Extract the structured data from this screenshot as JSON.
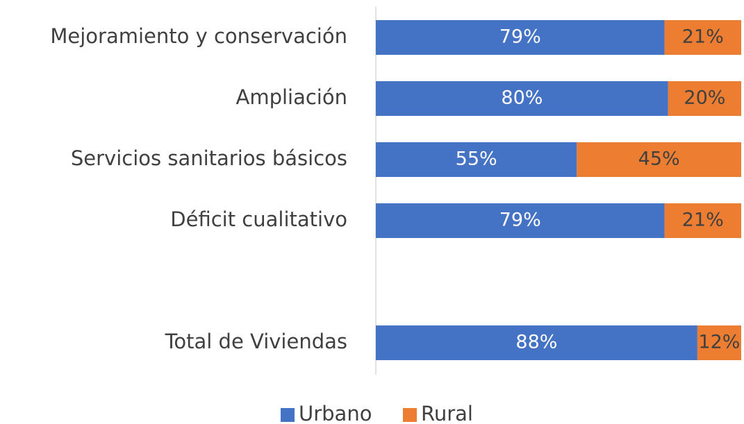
{
  "chart_data": {
    "type": "stacked_bar_horizontal",
    "categories": [
      "Mejoramiento y conservación",
      "Ampliación",
      "Servicios sanitarios básicos",
      "Déficit cualitativo",
      null,
      "Total de Viviendas"
    ],
    "series": [
      {
        "name": "Urbano",
        "color": "#4472c4",
        "values": [
          79,
          80,
          55,
          79,
          null,
          88
        ],
        "value_labels": [
          "79%",
          "80%",
          "55%",
          "79%",
          null,
          "88%"
        ]
      },
      {
        "name": "Rural",
        "color": "#ed7d31",
        "values": [
          21,
          20,
          45,
          21,
          null,
          12
        ],
        "value_labels": [
          "21%",
          "20%",
          "45%",
          "21%",
          null,
          "12%"
        ]
      }
    ],
    "xlim": [
      0,
      100
    ],
    "legend": "bottom"
  }
}
